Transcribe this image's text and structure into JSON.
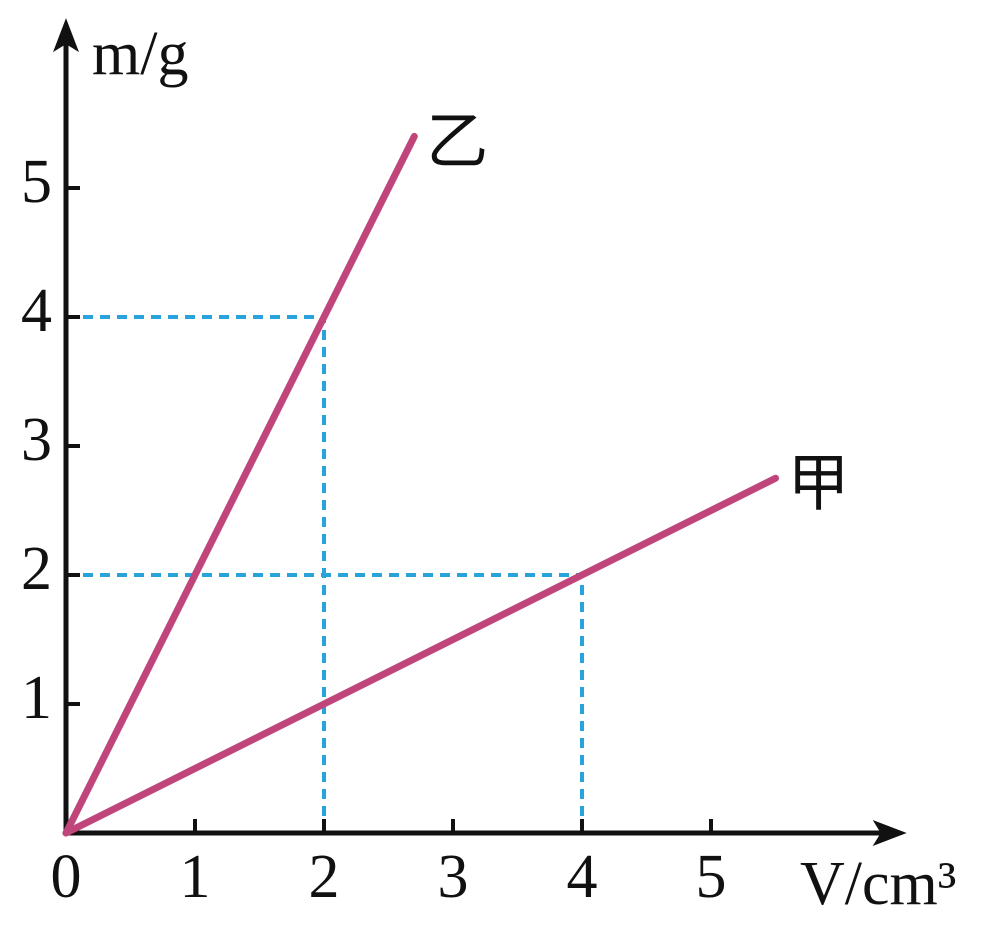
{
  "chart_data": {
    "type": "line",
    "xlabel": "V/cm³",
    "ylabel": "m/g",
    "xlim": [
      0,
      6.3
    ],
    "ylim": [
      0,
      6.1
    ],
    "xticks": [
      0,
      1,
      2,
      3,
      4,
      5
    ],
    "yticks": [
      1,
      2,
      3,
      4,
      5
    ],
    "series": [
      {
        "name": "乙",
        "color": "#c0457a",
        "x": [
          0,
          2.7
        ],
        "values": [
          0,
          5.4
        ]
      },
      {
        "name": "甲",
        "color": "#c0457a",
        "x": [
          0,
          5.5
        ],
        "values": [
          0,
          2.75
        ]
      }
    ],
    "guides": [
      {
        "x": 2,
        "y": 4
      },
      {
        "x": 4,
        "y": 2
      }
    ],
    "guide_color": "#29a3dc"
  }
}
